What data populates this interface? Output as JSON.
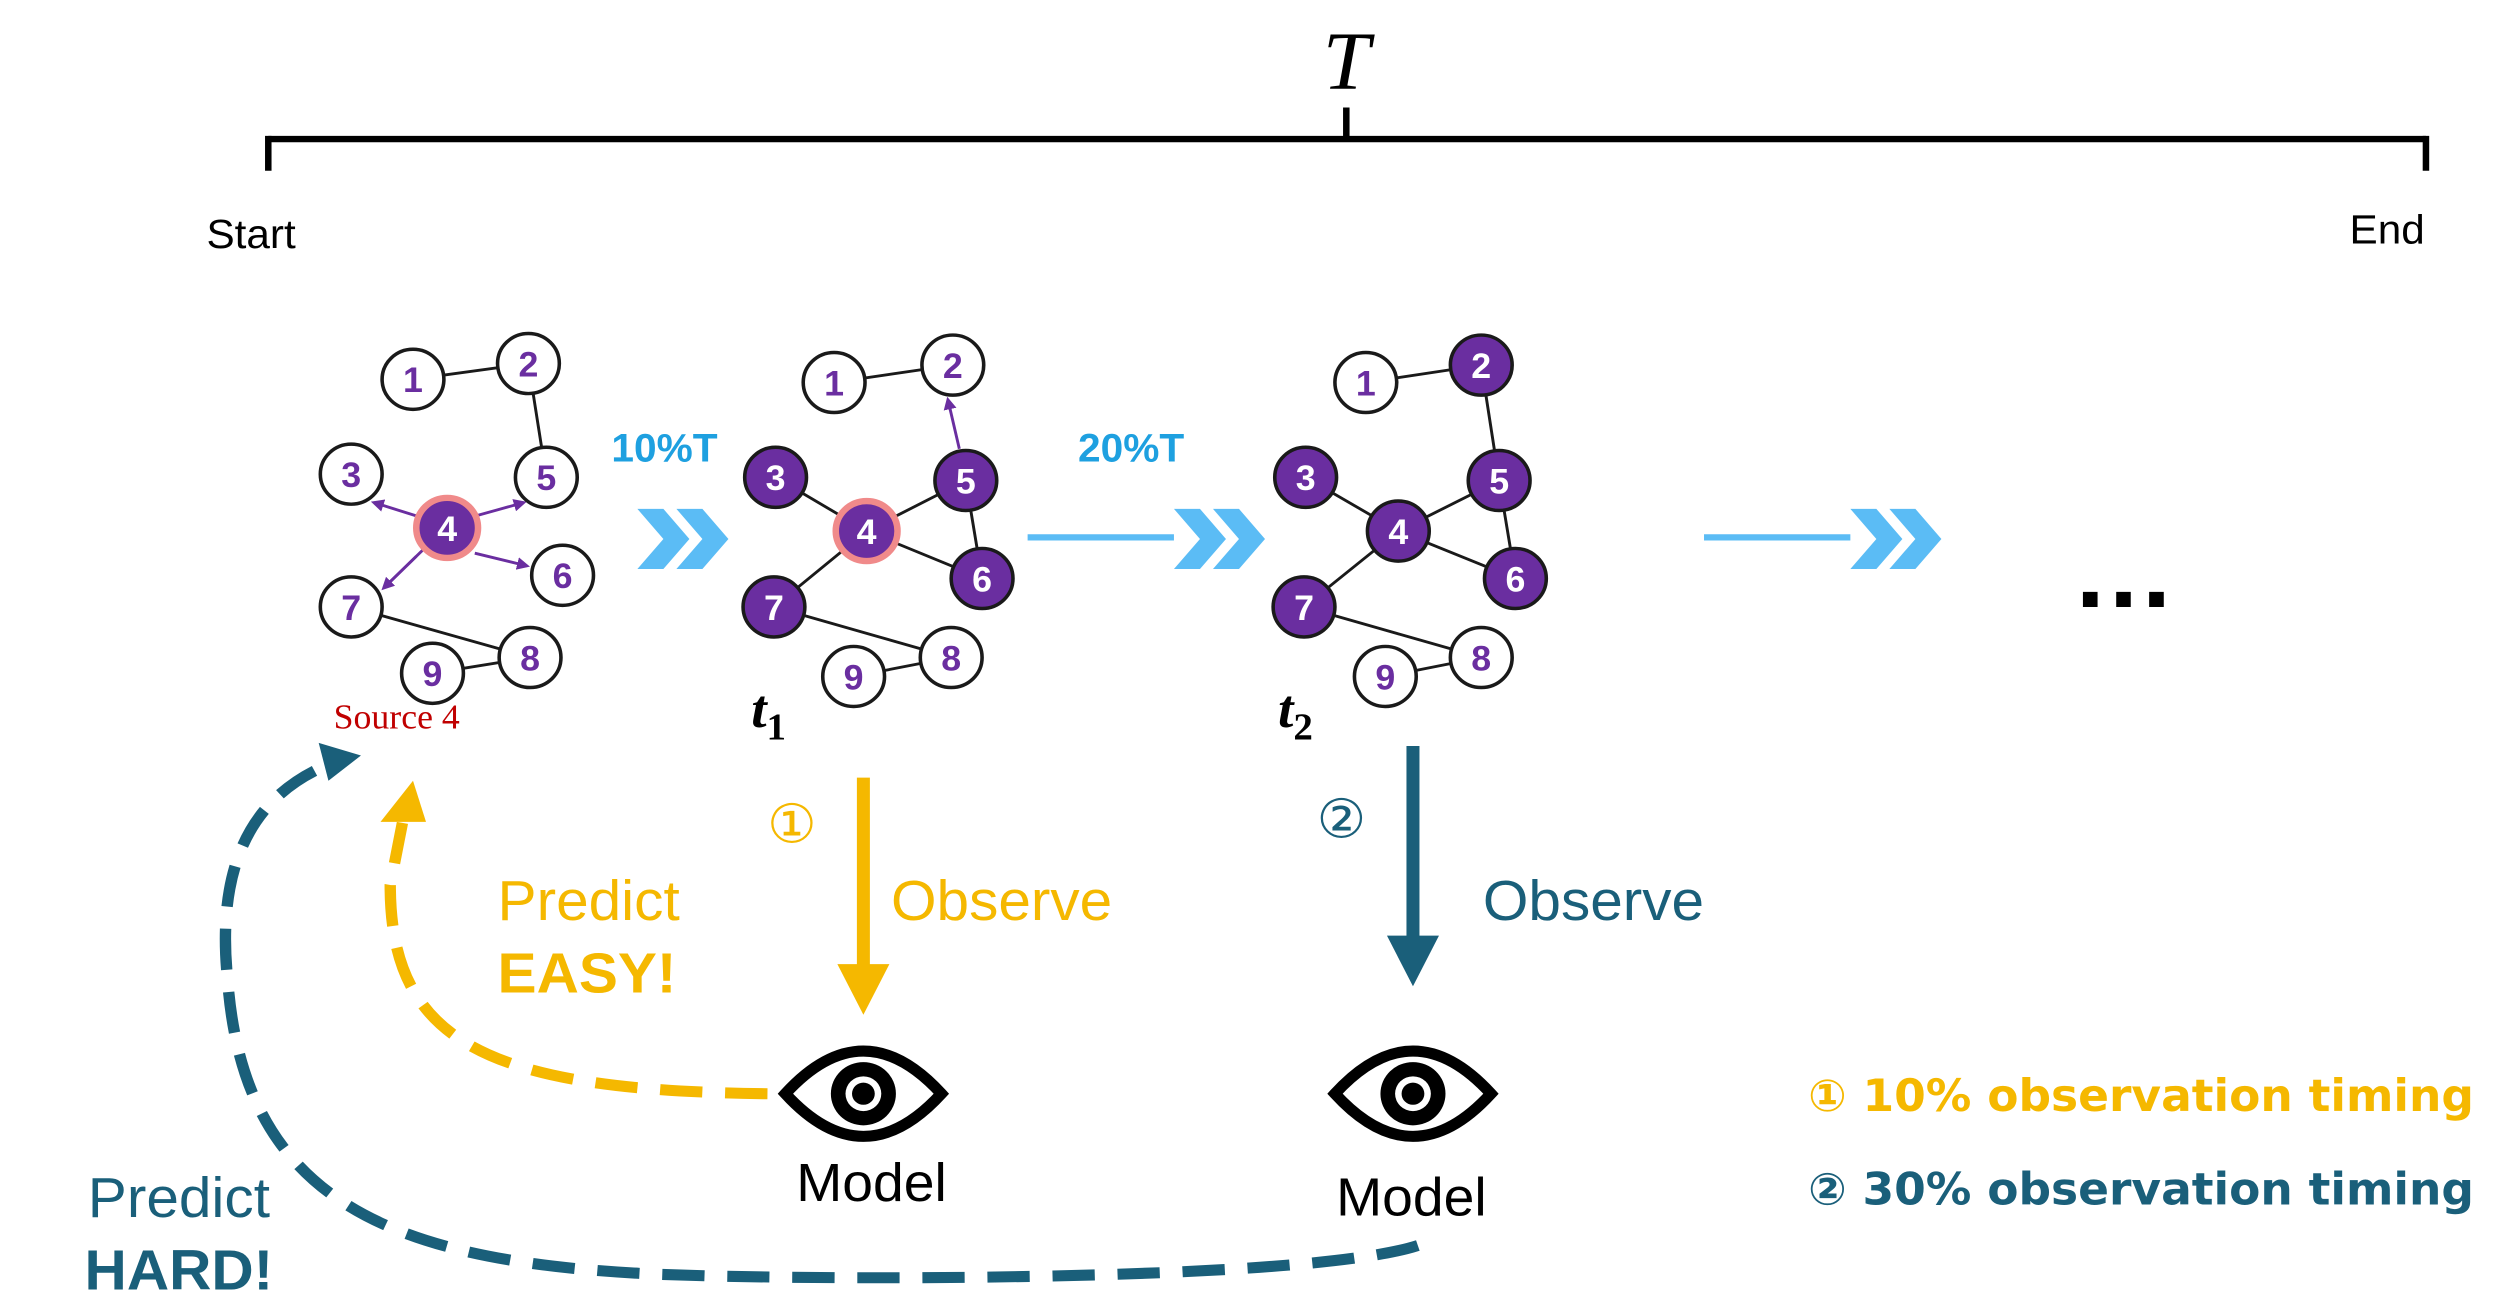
{
  "timeline": {
    "label": "T",
    "start_label": "Start",
    "end_label": "End"
  },
  "graphs": {
    "source_label": "Source 4",
    "t1_label": "t",
    "t1_sub": "1",
    "t2_label": "t",
    "t2_sub": "2",
    "ellipsis": "…",
    "node_labels": [
      "1",
      "2",
      "3",
      "4",
      "5",
      "6",
      "7",
      "8",
      "9"
    ]
  },
  "transitions": {
    "step1": "10%T",
    "step2": "20%T"
  },
  "observe": {
    "marker1": "①",
    "marker2": "②",
    "label1": "Observe",
    "label2": "Observe",
    "model1": "Model",
    "model2": "Model"
  },
  "predict": {
    "easy_line1": "Predict",
    "easy_line2": "EASY!",
    "hard_line1": "Predict",
    "hard_line2": "HARD!"
  },
  "legend": {
    "item1": "① 10% observation timing",
    "item2": "② 30% observation timing"
  },
  "colors": {
    "yellow": "#f5b800",
    "teal": "#1a5f7a",
    "light_blue": "#5bbcf5",
    "purple": "#6a2ea0",
    "source_red": "#c00000",
    "source_ring": "#f08a8a"
  }
}
